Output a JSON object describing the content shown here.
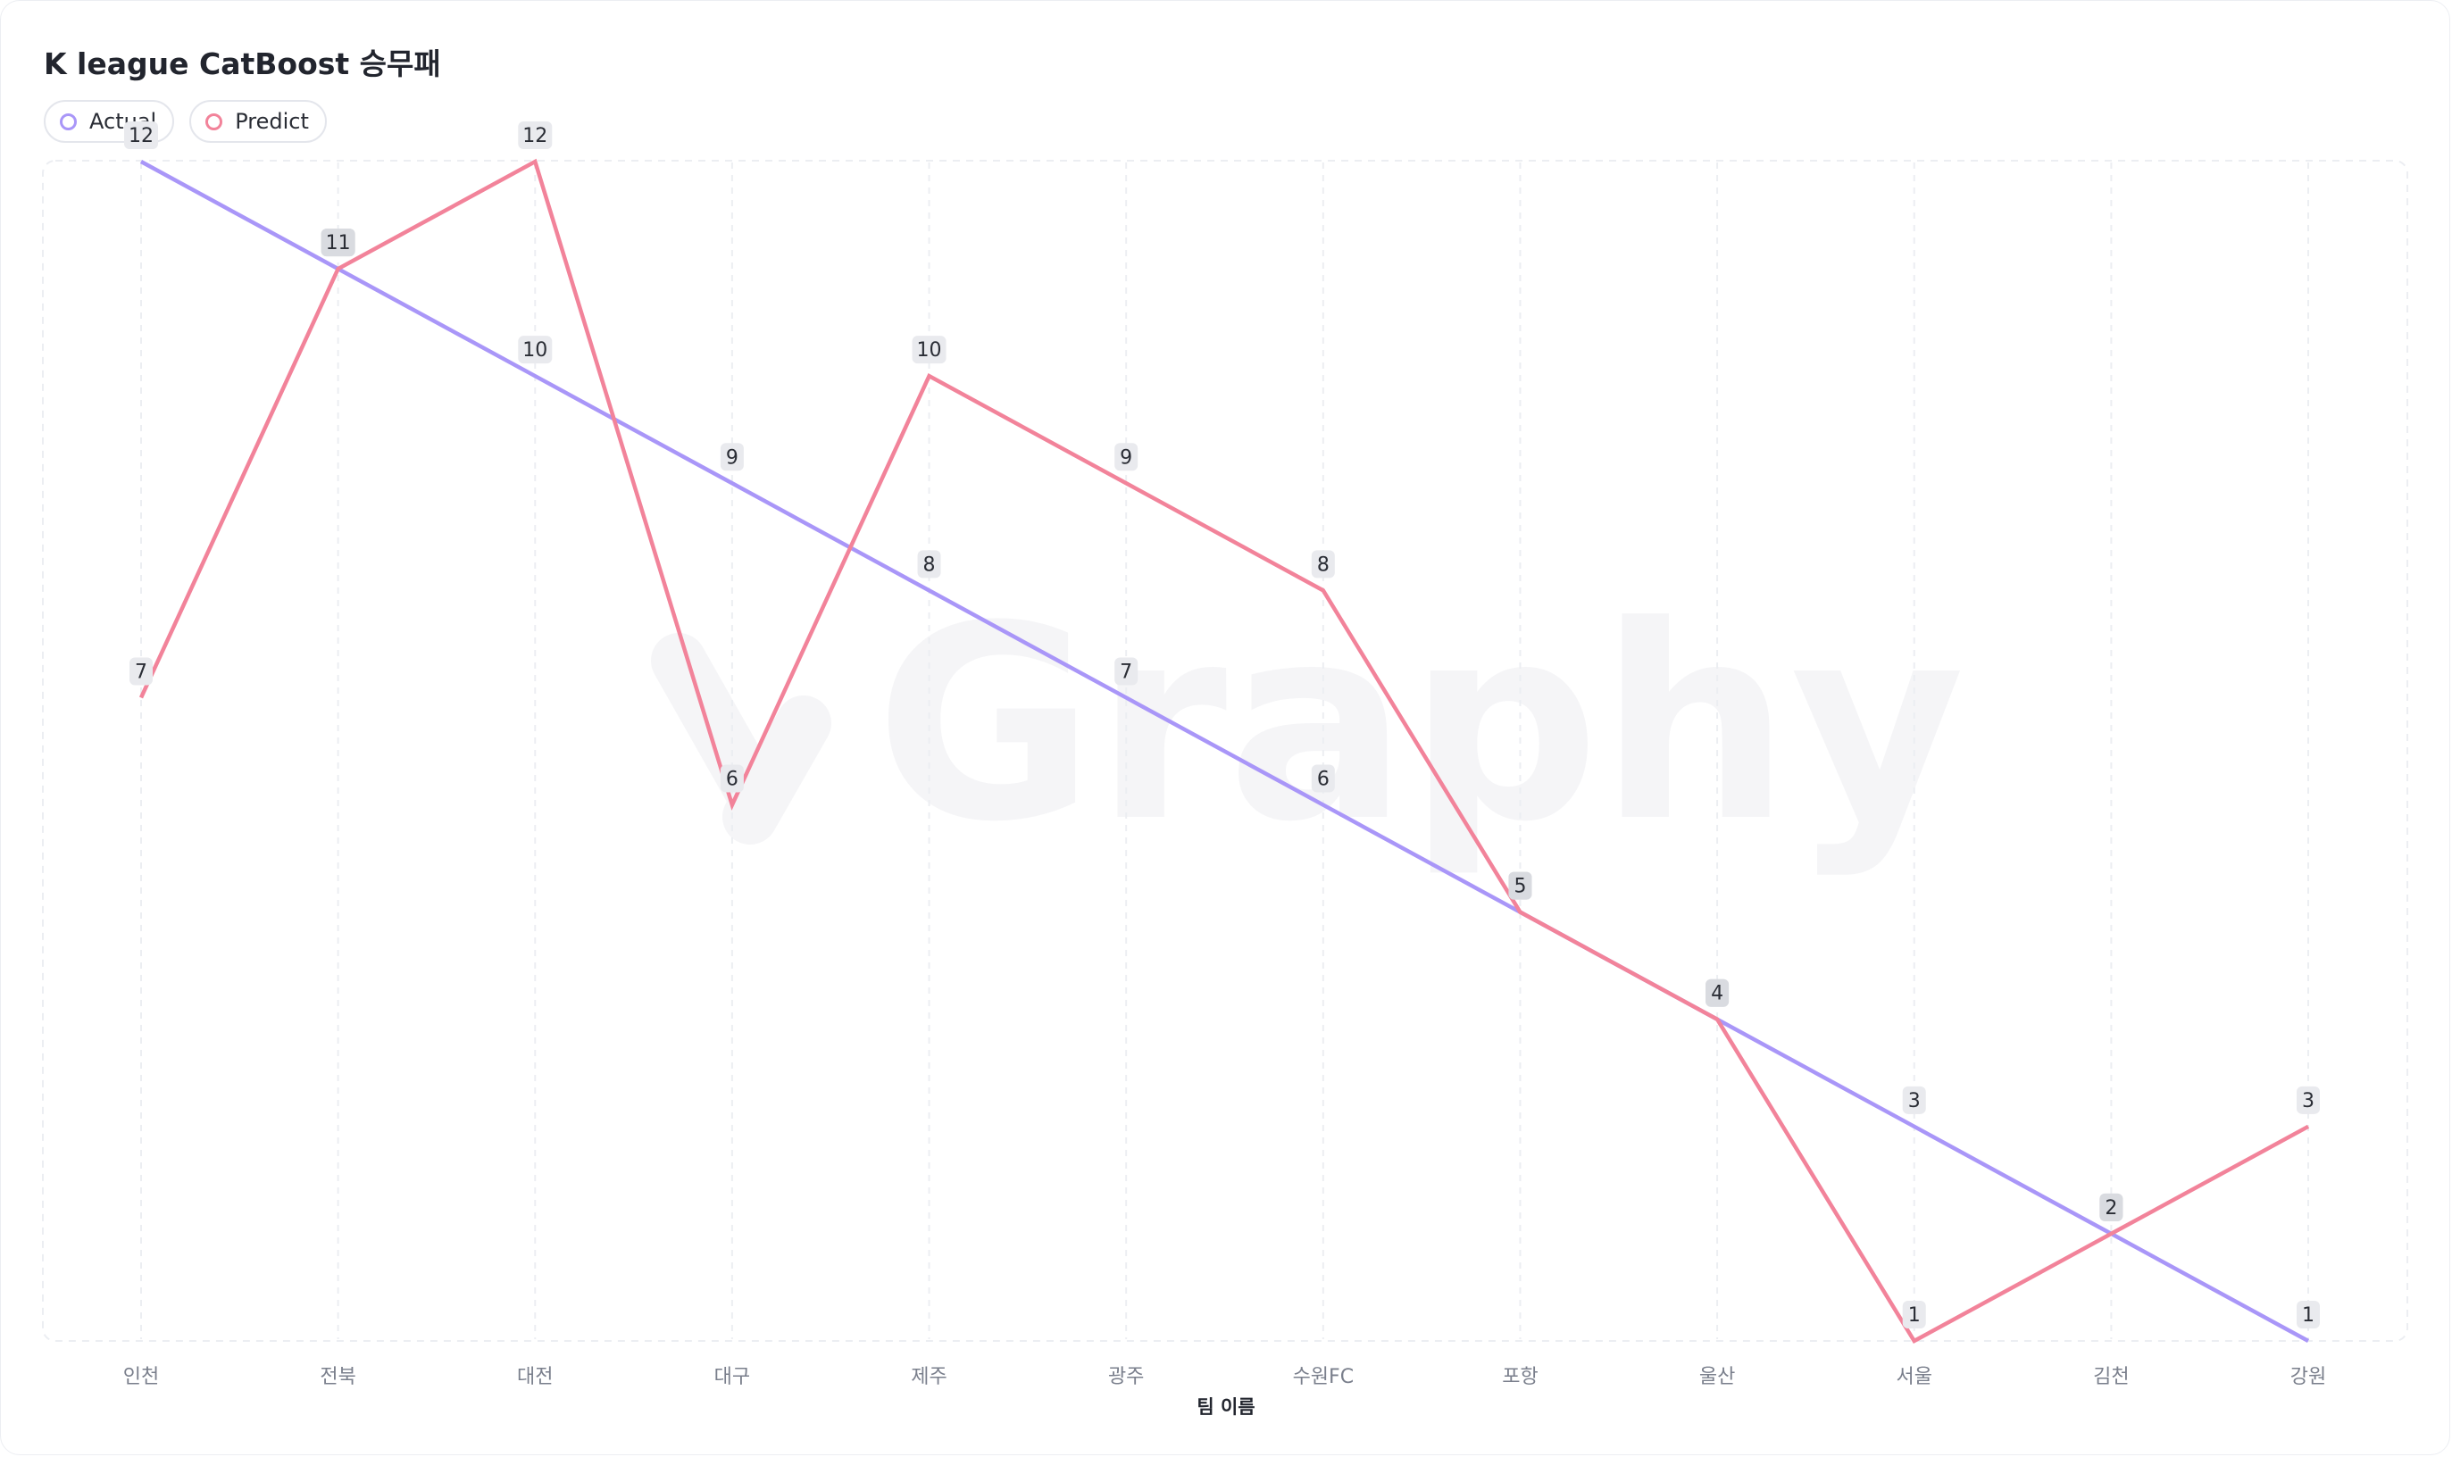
{
  "chart_data": {
    "type": "line",
    "title": "K league CatBoost 승무패",
    "xlabel": "팀 이름",
    "ylabel": "",
    "categories": [
      "인천",
      "전북",
      "대전",
      "대구",
      "제주",
      "광주",
      "수원FC",
      "포항",
      "울산",
      "서울",
      "김천",
      "강원"
    ],
    "series": [
      {
        "name": "Actual",
        "color": "#a996f8",
        "values": [
          12,
          11,
          10,
          9,
          8,
          7,
          6,
          5,
          4,
          3,
          2,
          1
        ]
      },
      {
        "name": "Predict",
        "color": "#f2839a",
        "values": [
          7,
          11,
          12,
          6,
          10,
          9,
          8,
          5,
          4,
          1,
          2,
          3
        ]
      }
    ],
    "ylim": [
      1,
      12
    ],
    "grid": true,
    "legend_position": "top-left"
  },
  "colors": {
    "grid": "#eceef2",
    "tick_text": "#7a7f8c",
    "label_bg": "#e9eaee",
    "label_bg_overlap": "#d9dbe0",
    "watermark": "#f5f5f7"
  }
}
